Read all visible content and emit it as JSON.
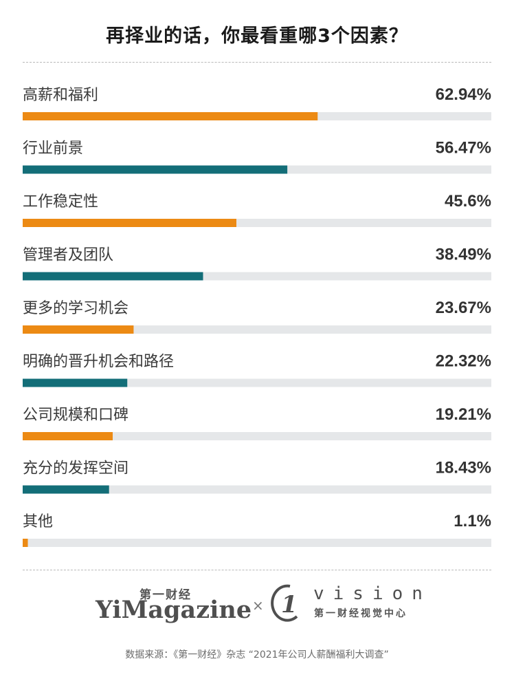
{
  "title": "再择业的话，你最看重哪3个因素？",
  "colors": {
    "orange": "#ec8a14",
    "teal": "#136e78",
    "track": "#e5e7e9"
  },
  "chart_data": {
    "type": "bar",
    "orientation": "horizontal",
    "title": "再择业的话，你最看重哪3个因素？",
    "xlim": [
      0,
      100
    ],
    "categories": [
      "高薪和福利",
      "行业前景",
      "工作稳定性",
      "管理者及团队",
      "更多的学习机会",
      "明确的晋升机会和路径",
      "公司规模和口碑",
      "充分的发挥空间",
      "其他"
    ],
    "values": [
      62.94,
      56.47,
      45.6,
      38.49,
      23.67,
      22.32,
      19.21,
      18.43,
      1.1
    ],
    "value_labels": [
      "62.94%",
      "56.47%",
      "45.6%",
      "38.49%",
      "23.67%",
      "22.32%",
      "19.21%",
      "18.43%",
      "1.1%"
    ],
    "bar_colors": [
      "#ec8a14",
      "#136e78",
      "#ec8a14",
      "#136e78",
      "#ec8a14",
      "#136e78",
      "#ec8a14",
      "#136e78",
      "#ec8a14"
    ]
  },
  "logos": {
    "yi_cn": "第一财经",
    "yi_en": "YiMagazine",
    "times": "×",
    "vision_mark": "1",
    "vision_en": "vision",
    "vision_cn": "第一财经视觉中心"
  },
  "source": "数据来源：《第一财经》杂志 “2021年公司人薪酬福利大调查”"
}
